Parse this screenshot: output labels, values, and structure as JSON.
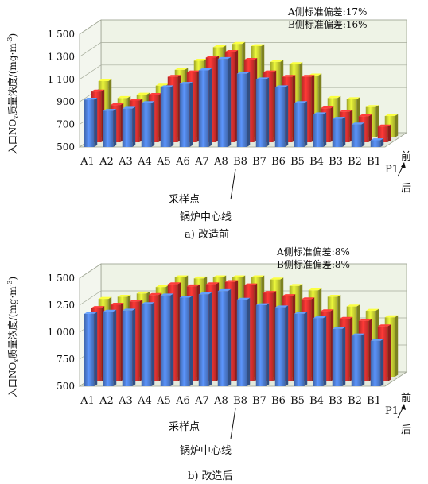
{
  "chart_data": [
    {
      "type": "bar",
      "variant": "3d-clustered",
      "title": "a) 改造前",
      "ylabel_main": "入口NO",
      "ylabel_sub": "x",
      "ylabel_tail": "质量浓度/(mg·m",
      "ylabel_sup": "-3",
      "ylabel_end": ")",
      "ylim": [
        500,
        1500
      ],
      "yticks": [
        "500",
        "700",
        "900",
        "1 100",
        "1 300",
        "1 500"
      ],
      "ytick_values": [
        500,
        700,
        900,
        1100,
        1300,
        1500
      ],
      "categories": [
        "A1",
        "A2",
        "A3",
        "A4",
        "A5",
        "A6",
        "A7",
        "A8",
        "B8",
        "B7",
        "B6",
        "B5",
        "B4",
        "B3",
        "B2",
        "B1"
      ],
      "xlabel_line1": "采样点",
      "xlabel_line2": "锅炉中心线",
      "depth_labels": {
        "front": "前",
        "p1": "P1",
        "back": "后"
      },
      "annotations": [
        "A侧标准偏差:17%",
        "B侧标准偏差:16%"
      ],
      "grid": true,
      "series": [
        {
          "values": [
            920,
            820,
            840,
            890,
            1030,
            1060,
            1180,
            1280,
            1150,
            1100,
            1030,
            890,
            790,
            750,
            700,
            560
          ]
        },
        {
          "values": [
            950,
            830,
            870,
            920,
            1080,
            1120,
            1250,
            1300,
            1230,
            1120,
            1080,
            1080,
            800,
            770,
            730,
            640
          ]
        },
        {
          "values": [
            1000,
            850,
            880,
            960,
            1100,
            1180,
            1300,
            1330,
            1310,
            1170,
            1150,
            1050,
            850,
            840,
            770,
            690
          ]
        }
      ],
      "colors": [
        "#4f7fd6",
        "#e2312f",
        "#c9d233"
      ]
    },
    {
      "type": "bar",
      "variant": "3d-clustered",
      "title": "b) 改造后",
      "ylabel_main": "入口NO",
      "ylabel_sub": "x",
      "ylabel_tail": "质量浓度/(mg·m",
      "ylabel_sup": "-3",
      "ylabel_end": ")",
      "ylim": [
        500,
        1500
      ],
      "yticks": [
        "500",
        "750",
        "1 000",
        "1 250",
        "1 500"
      ],
      "ytick_values": [
        500,
        750,
        1000,
        1250,
        1500
      ],
      "categories": [
        "A1",
        "A2",
        "A3",
        "A4",
        "A5",
        "A6",
        "A7",
        "A8",
        "B8",
        "B7",
        "B6",
        "B5",
        "B4",
        "B3",
        "B2",
        "B1"
      ],
      "xlabel_line1": "采样点",
      "xlabel_line2": "锅炉中心线",
      "depth_labels": {
        "front": "前",
        "p1": "P1",
        "back": "后"
      },
      "annotations": [
        "A侧标准偏差:8%",
        "B侧标准偏差:8%"
      ],
      "grid": true,
      "series": [
        {
          "values": [
            1170,
            1190,
            1200,
            1260,
            1340,
            1320,
            1350,
            1380,
            1300,
            1250,
            1230,
            1170,
            1130,
            1030,
            970,
            920
          ]
        },
        {
          "values": [
            1180,
            1210,
            1240,
            1300,
            1400,
            1380,
            1400,
            1420,
            1390,
            1320,
            1290,
            1260,
            1150,
            1080,
            1060,
            1010
          ]
        },
        {
          "values": [
            1220,
            1240,
            1270,
            1330,
            1420,
            1410,
            1420,
            1420,
            1420,
            1400,
            1340,
            1300,
            1240,
            1150,
            1110,
            1050
          ]
        }
      ],
      "colors": [
        "#4f7fd6",
        "#e2312f",
        "#c9d233"
      ]
    }
  ]
}
